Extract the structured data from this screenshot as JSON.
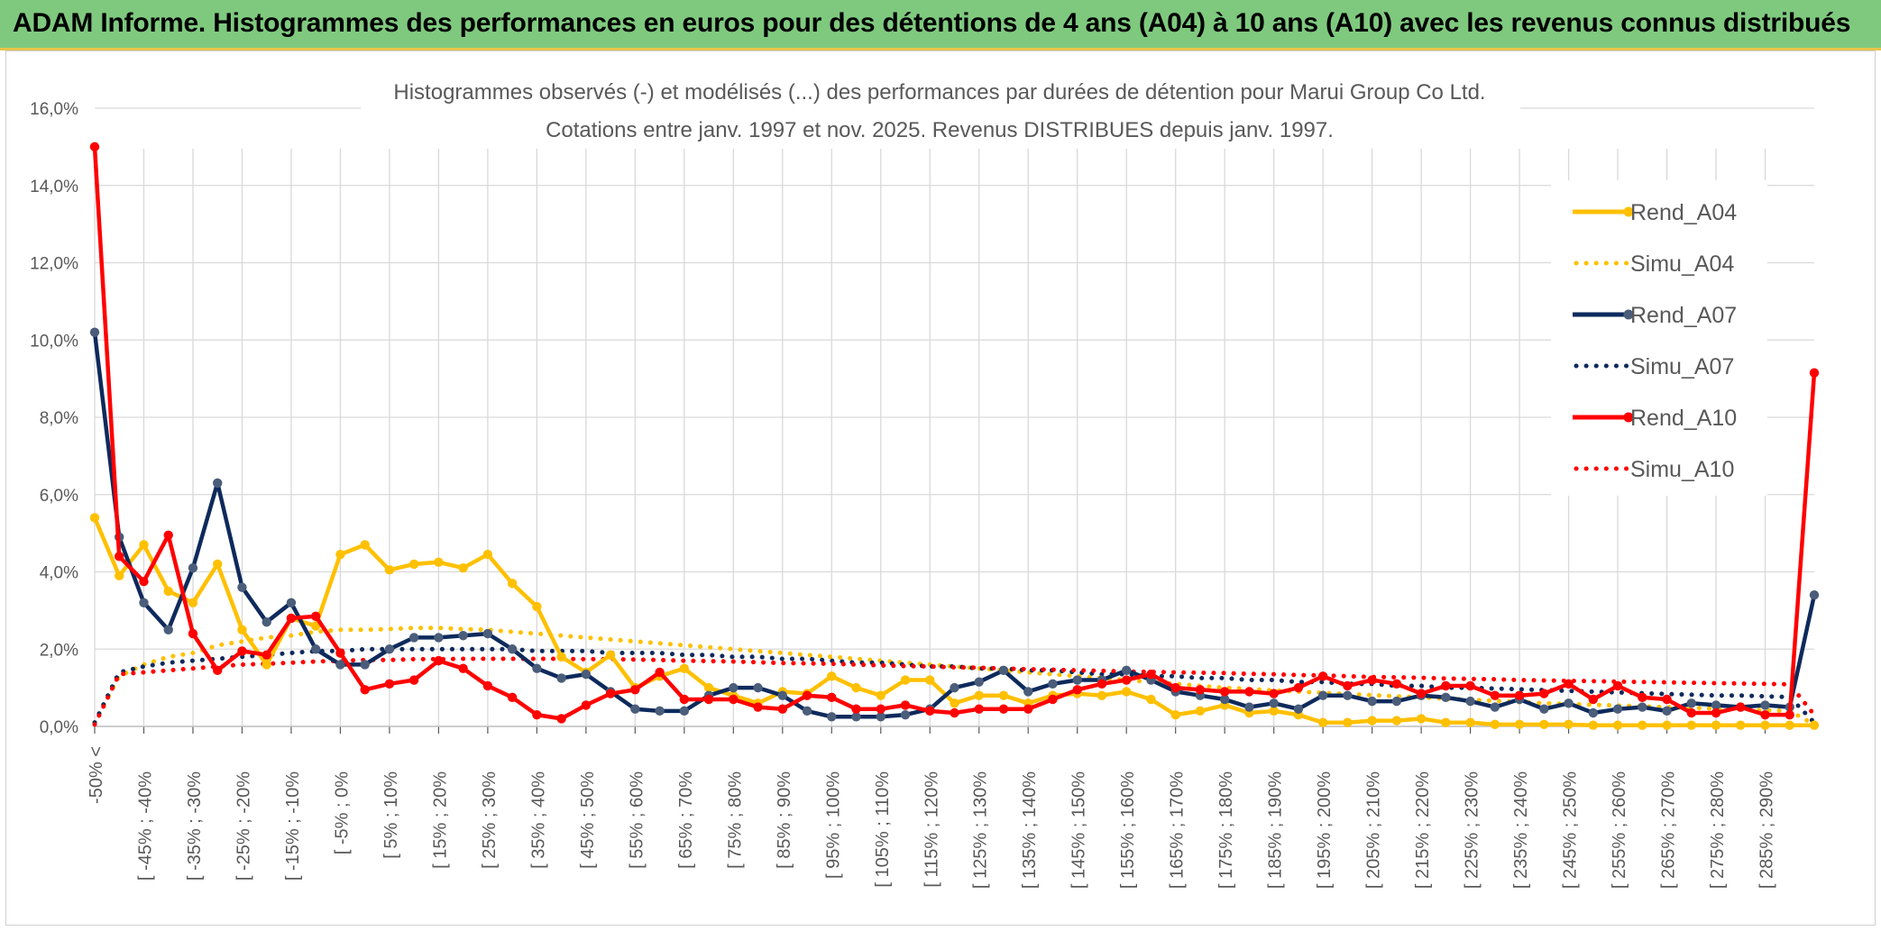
{
  "header": {
    "title": "ADAM Informe. Histogrammes des performances en euros pour des détentions de 4 ans (A04) à 10 ans (A10) avec les revenus connus distribués"
  },
  "colors": {
    "banner": "#7fc97f",
    "A04": "#ffc000",
    "A07": "#0e2a5c",
    "A10": "#ff0000",
    "grid": "#d9d9d9",
    "axis_text": "#595959"
  },
  "chart_data": {
    "type": "line",
    "title": "Histogrammes observés (-) et modélisés (...) des performances par durées de détention pour Marui Group Co Ltd.",
    "subtitle": "Cotations entre janv. 1997 et nov. 2025. Revenus DISTRIBUES depuis janv. 1997.",
    "xlabel": "",
    "ylabel": "",
    "ylim": [
      0,
      16
    ],
    "yticks": [
      "0,0%",
      "2,0%",
      "4,0%",
      "6,0%",
      "8,0%",
      "10,0%",
      "12,0%",
      "14,0%",
      "16,0%"
    ],
    "legend_position": "right",
    "x_tick_labels": [
      "-50% <",
      "[ -45% ; -40%",
      "[ -35% ; -30%",
      "[ -25% ; -20%",
      "[ -15% ; -10%",
      "[ -5% ; 0%",
      "[ 5% ; 10%",
      "[ 15% ; 20%",
      "[ 25% ; 30%",
      "[ 35% ; 40%",
      "[ 45% ; 50%",
      "[ 55% ; 60%",
      "[ 65% ; 70%",
      "[ 75% ; 80%",
      "[ 85% ; 90%",
      "[ 95% ; 100%",
      "[ 105% ; 110%",
      "[ 115% ; 120%",
      "[ 125% ; 130%",
      "[ 135% ; 140%",
      "[ 145% ; 150%",
      "[ 155% ; 160%",
      "[ 165% ; 170%",
      "[ 175% ; 180%",
      "[ 185% ; 190%",
      "[ 195% ; 200%",
      "[ 205% ; 210%",
      "[ 215% ; 220%",
      "[ 225% ; 230%",
      "[ 235% ; 240%",
      "[ 245% ; 250%",
      "[ 255% ; 260%",
      "[ 265% ; 270%",
      "[ 275% ; 280%",
      "[ 285% ; 290%"
    ],
    "num_points": 71,
    "series": [
      {
        "name": "Rend_A04",
        "style": "solid",
        "color": "#ffc000",
        "values": [
          5.4,
          3.9,
          4.7,
          3.5,
          3.2,
          4.2,
          2.5,
          1.6,
          2.8,
          2.6,
          4.45,
          4.7,
          4.05,
          4.2,
          4.25,
          4.1,
          4.45,
          3.7,
          3.1,
          1.8,
          1.4,
          1.85,
          1.0,
          1.3,
          1.5,
          1.0,
          0.8,
          0.6,
          0.9,
          0.85,
          1.3,
          1.0,
          0.8,
          1.2,
          1.2,
          0.6,
          0.8,
          0.8,
          0.6,
          0.8,
          0.85,
          0.8,
          0.9,
          0.7,
          0.3,
          0.4,
          0.55,
          0.35,
          0.4,
          0.3,
          0.1,
          0.1,
          0.15,
          0.15,
          0.2,
          0.1,
          0.1,
          0.05,
          0.05,
          0.05,
          0.05,
          0.03,
          0.03,
          0.03,
          0.03,
          0.03,
          0.03,
          0.03,
          0.03,
          0.03,
          0.03
        ]
      },
      {
        "name": "Simu_A04",
        "style": "dotted",
        "color": "#ffc000",
        "values": [
          0.1,
          1.3,
          1.6,
          1.8,
          1.9,
          2.1,
          2.2,
          2.3,
          2.35,
          2.45,
          2.5,
          2.5,
          2.52,
          2.55,
          2.55,
          2.52,
          2.5,
          2.45,
          2.4,
          2.35,
          2.3,
          2.25,
          2.2,
          2.15,
          2.1,
          2.05,
          2.0,
          1.95,
          1.9,
          1.85,
          1.8,
          1.75,
          1.7,
          1.65,
          1.6,
          1.55,
          1.5,
          1.45,
          1.4,
          1.35,
          1.3,
          1.25,
          1.2,
          1.15,
          1.1,
          1.05,
          1.0,
          0.97,
          0.93,
          0.9,
          0.87,
          0.84,
          0.81,
          0.78,
          0.75,
          0.72,
          0.69,
          0.66,
          0.63,
          0.6,
          0.58,
          0.56,
          0.54,
          0.52,
          0.5,
          0.48,
          0.46,
          0.44,
          0.42,
          0.4,
          0.05
        ]
      },
      {
        "name": "Rend_A07",
        "style": "solid",
        "color": "#0e2a5c",
        "values": [
          10.2,
          4.9,
          3.2,
          2.5,
          4.1,
          6.3,
          3.6,
          2.7,
          3.2,
          2.0,
          1.6,
          1.6,
          2.0,
          2.3,
          2.3,
          2.35,
          2.4,
          2.0,
          1.5,
          1.25,
          1.35,
          0.9,
          0.45,
          0.4,
          0.4,
          0.8,
          1.0,
          1.0,
          0.8,
          0.4,
          0.25,
          0.25,
          0.25,
          0.3,
          0.45,
          1.0,
          1.15,
          1.45,
          0.9,
          1.1,
          1.2,
          1.2,
          1.45,
          1.2,
          0.9,
          0.8,
          0.7,
          0.5,
          0.6,
          0.45,
          0.8,
          0.8,
          0.65,
          0.65,
          0.8,
          0.75,
          0.65,
          0.5,
          0.7,
          0.45,
          0.6,
          0.35,
          0.45,
          0.5,
          0.4,
          0.6,
          0.55,
          0.5,
          0.55,
          0.5,
          3.4
        ]
      },
      {
        "name": "Simu_A07",
        "style": "dotted",
        "color": "#0e2a5c",
        "values": [
          0.1,
          1.4,
          1.55,
          1.65,
          1.7,
          1.75,
          1.8,
          1.85,
          1.9,
          1.95,
          1.95,
          2.0,
          2.0,
          2.0,
          2.0,
          2.0,
          2.0,
          2.0,
          1.95,
          1.95,
          1.95,
          1.9,
          1.9,
          1.9,
          1.85,
          1.85,
          1.8,
          1.8,
          1.75,
          1.75,
          1.7,
          1.65,
          1.65,
          1.6,
          1.55,
          1.55,
          1.5,
          1.5,
          1.45,
          1.45,
          1.4,
          1.35,
          1.35,
          1.3,
          1.3,
          1.25,
          1.25,
          1.2,
          1.2,
          1.15,
          1.15,
          1.1,
          1.1,
          1.05,
          1.05,
          1.0,
          1.0,
          0.98,
          0.96,
          0.94,
          0.92,
          0.9,
          0.88,
          0.86,
          0.84,
          0.82,
          0.8,
          0.8,
          0.78,
          0.76,
          0.1
        ]
      },
      {
        "name": "Rend_A10",
        "style": "solid",
        "color": "#ff0000",
        "values": [
          15.0,
          4.4,
          3.75,
          4.95,
          2.4,
          1.45,
          1.95,
          1.85,
          2.8,
          2.85,
          1.9,
          0.95,
          1.1,
          1.2,
          1.7,
          1.5,
          1.05,
          0.75,
          0.3,
          0.2,
          0.55,
          0.85,
          0.95,
          1.4,
          0.7,
          0.7,
          0.7,
          0.5,
          0.45,
          0.8,
          0.75,
          0.45,
          0.45,
          0.55,
          0.4,
          0.35,
          0.45,
          0.45,
          0.45,
          0.7,
          0.95,
          1.1,
          1.2,
          1.35,
          1.0,
          0.95,
          0.9,
          0.9,
          0.85,
          1.0,
          1.3,
          1.05,
          1.2,
          1.1,
          0.85,
          1.05,
          1.05,
          0.8,
          0.8,
          0.85,
          1.1,
          0.7,
          1.05,
          0.75,
          0.7,
          0.35,
          0.35,
          0.5,
          0.3,
          0.3,
          9.15
        ]
      },
      {
        "name": "Simu_A10",
        "style": "dotted",
        "color": "#ff0000",
        "values": [
          0.05,
          1.35,
          1.4,
          1.45,
          1.5,
          1.55,
          1.6,
          1.62,
          1.65,
          1.68,
          1.7,
          1.72,
          1.72,
          1.74,
          1.74,
          1.75,
          1.75,
          1.75,
          1.75,
          1.75,
          1.74,
          1.74,
          1.73,
          1.72,
          1.7,
          1.69,
          1.68,
          1.66,
          1.64,
          1.63,
          1.62,
          1.6,
          1.58,
          1.56,
          1.55,
          1.53,
          1.52,
          1.5,
          1.48,
          1.47,
          1.45,
          1.44,
          1.42,
          1.41,
          1.4,
          1.39,
          1.38,
          1.36,
          1.35,
          1.33,
          1.32,
          1.3,
          1.28,
          1.27,
          1.26,
          1.24,
          1.23,
          1.22,
          1.2,
          1.19,
          1.18,
          1.17,
          1.16,
          1.15,
          1.14,
          1.13,
          1.12,
          1.11,
          1.1,
          1.09,
          0.3
        ]
      }
    ]
  }
}
